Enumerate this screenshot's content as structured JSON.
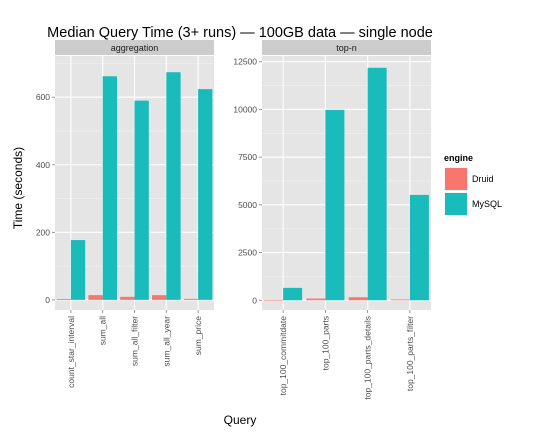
{
  "chart_data": {
    "type": "bar",
    "title": "Median Query Time (3+ runs) — 100GB data — single node",
    "xlabel": "Query",
    "ylabel": "Time (seconds)",
    "legend": {
      "title": "engine",
      "position": "right",
      "entries": [
        {
          "name": "Druid",
          "color": "#F8766D"
        },
        {
          "name": "MySQL",
          "color": "#19BBBB"
        }
      ]
    },
    "grid": true,
    "colors": {
      "panel_bg": "#E5E5E5",
      "strip_bg": "#CCCCCC",
      "grid": "#FFFFFF"
    },
    "panels": [
      {
        "strip": "aggregation",
        "categories": [
          "count_star_interval",
          "sum_all",
          "sum_all_filter",
          "sum_all_year",
          "sum_price"
        ],
        "ylim": [
          -30,
          722
        ],
        "yticks": [
          0,
          200,
          400,
          600
        ],
        "series": [
          {
            "name": "Druid",
            "values": [
              2.5,
              14,
              9,
              14,
              3
            ]
          },
          {
            "name": "MySQL",
            "values": [
              177,
              662,
              590,
              674,
              624
            ]
          }
        ]
      },
      {
        "strip": "top-n",
        "categories": [
          "top_100_commitdate",
          "top_100_parts",
          "top_100_parts_details",
          "top_100_parts_filter"
        ],
        "ylim": [
          -510,
          12800
        ],
        "yticks": [
          0,
          2500,
          5000,
          7500,
          10000,
          12500
        ],
        "series": [
          {
            "name": "Druid",
            "values": [
              20,
              90,
              160,
              40
            ]
          },
          {
            "name": "MySQL",
            "values": [
              650,
              9980,
              12180,
              5520
            ]
          }
        ]
      }
    ]
  }
}
